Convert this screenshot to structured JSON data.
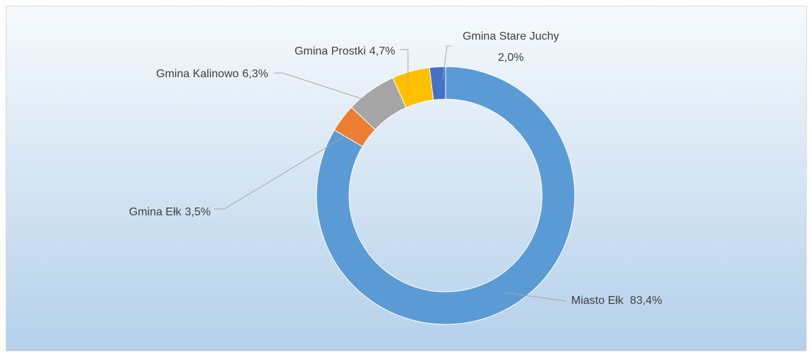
{
  "chart_data": {
    "type": "donut",
    "categories": [
      "Miasto Ełk",
      "Gmina Ełk",
      "Gmina Kalinowo",
      "Gmina Prostki",
      "Gmina Stare Juchy"
    ],
    "values": [
      83.4,
      3.5,
      6.3,
      4.7,
      2.0
    ],
    "value_labels": [
      "83,4%",
      "3,5%",
      "6,3%",
      "4,7%",
      "2,0%"
    ],
    "colors": [
      "#5b9bd5",
      "#ed7d31",
      "#a5a5a5",
      "#ffc000",
      "#4472c4"
    ]
  }
}
